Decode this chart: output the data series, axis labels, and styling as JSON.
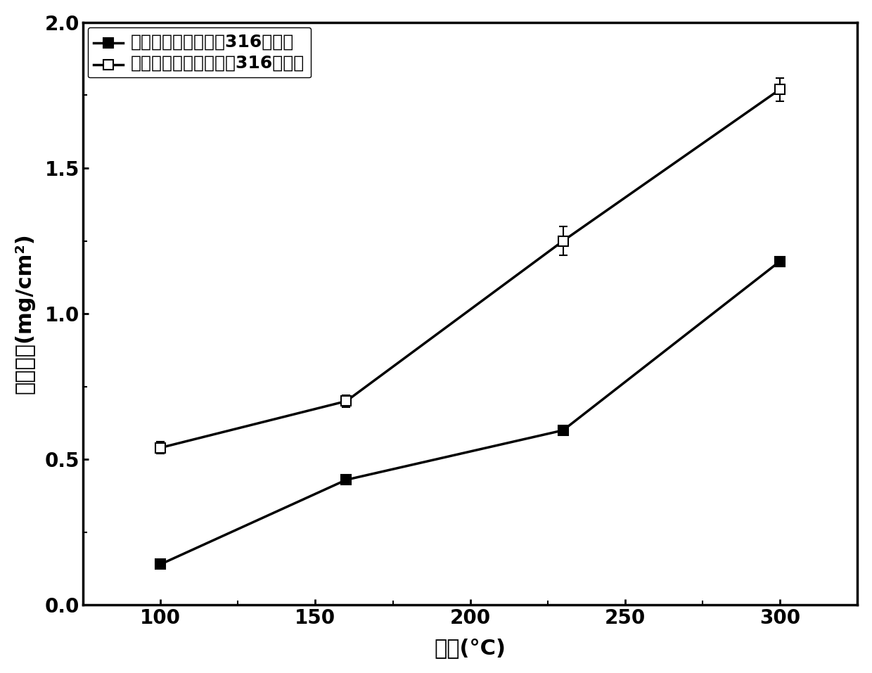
{
  "series1": {
    "x": [
      100,
      160,
      230,
      300
    ],
    "y": [
      0.14,
      0.43,
      0.6,
      1.18
    ],
    "yerr": [
      0.0,
      0.0,
      0.0,
      0.0
    ],
    "label": "经磷酸盐鼯化处理的316不锈锤",
    "marker": "s",
    "marker_face": "black",
    "marker_edge": "black",
    "linestyle": "-",
    "linewidth": 2.5,
    "markersize": 10
  },
  "series2": {
    "x": [
      100,
      160,
      230,
      300
    ],
    "y": [
      0.54,
      0.7,
      1.25,
      1.77
    ],
    "yerr": [
      0.02,
      0.02,
      0.05,
      0.04
    ],
    "label": "未经磷酸盐鼯化处理的316不锈锤",
    "marker": "s",
    "marker_face": "white",
    "marker_edge": "black",
    "linestyle": "-",
    "linewidth": 2.5,
    "markersize": 10
  },
  "xlabel": "温度(°C)",
  "ylabel": "腑蚀增重(mg/cm²)",
  "xlim": [
    75,
    325
  ],
  "ylim": [
    0.0,
    2.0
  ],
  "xticks": [
    100,
    150,
    200,
    250,
    300
  ],
  "yticks": [
    0.0,
    0.5,
    1.0,
    1.5,
    2.0
  ],
  "legend_fontsize": 18,
  "xlabel_fontsize": 22,
  "ylabel_fontsize": 22,
  "tick_labelsize": 20,
  "background_color": "#ffffff",
  "line_color": "black"
}
